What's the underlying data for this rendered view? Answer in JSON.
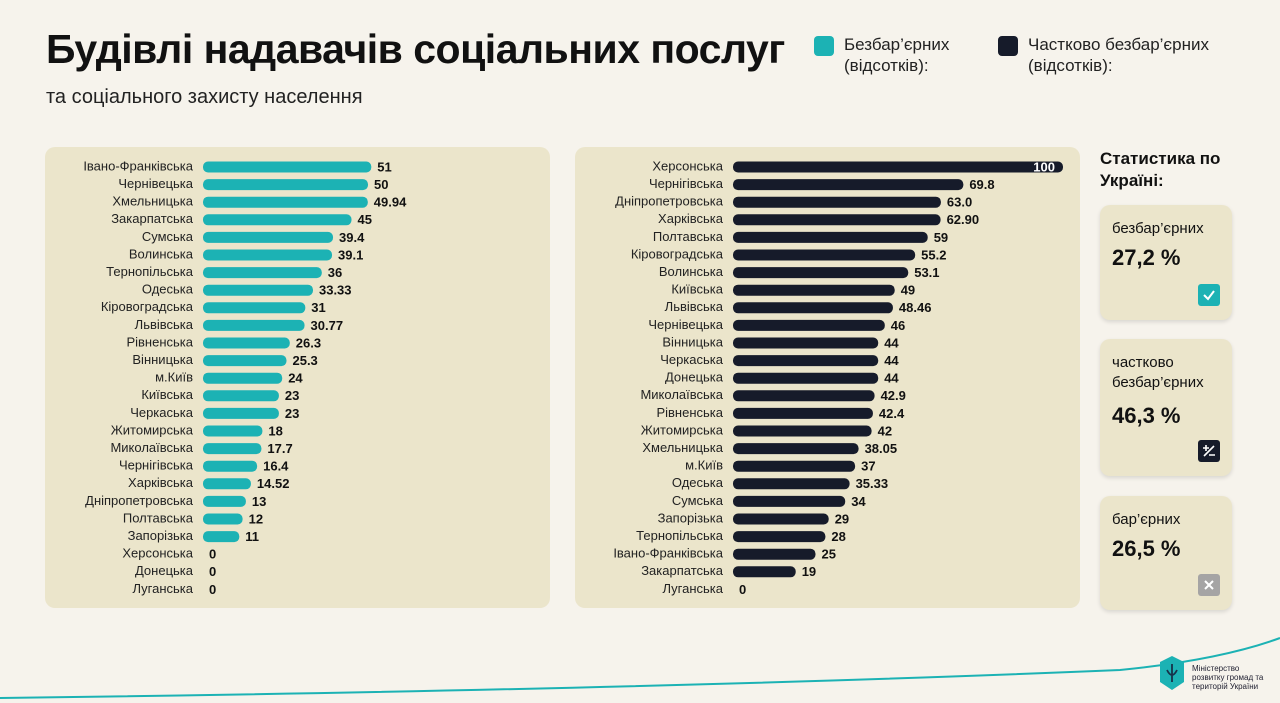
{
  "header": {
    "title": "Будівлі надавачів соціальних послуг",
    "subtitle": "та соціального захисту населення"
  },
  "chart_data": [
    {
      "type": "bar",
      "orientation": "horizontal",
      "categories": [
        "Івано-Франківська",
        "Чернівецька",
        "Хмельницька",
        "Закарпатська",
        "Сумська",
        "Волинська",
        "Тернопільська",
        "Одеська",
        "Кіровоградська",
        "Львівська",
        "Рівненська",
        "Вінницька",
        "м.Київ",
        "Київська",
        "Черкаська",
        "Житомирська",
        "Миколаївська",
        "Чернігівська",
        "Харківська",
        "Дніпропетровська",
        "Полтавська",
        "Запорізька",
        "Херсонська",
        "Донецька",
        "Луганська"
      ],
      "series": [
        {
          "name": "Безбар’єрних (відсотків):",
          "color": "#1cb2b4",
          "values": [
            51,
            50,
            49.94,
            45,
            39.4,
            39.1,
            36,
            33.33,
            31,
            30.77,
            26.3,
            25.3,
            24,
            23,
            23,
            18,
            17.7,
            16.4,
            14.52,
            13,
            12,
            11,
            0,
            0,
            0
          ]
        }
      ]
    },
    {
      "type": "bar",
      "orientation": "horizontal",
      "categories": [
        "Херсонська",
        "Чернігівська",
        "Дніпропетровська",
        "Харківська",
        "Полтавська",
        "Кіровоградська",
        "Волинська",
        "Київська",
        "Львівська",
        "Чернівецька",
        "Вінницька",
        "Черкаська",
        "Донецька",
        "Миколаївська",
        "Рівненська",
        "Житомирська",
        "Хмельницька",
        "м.Київ",
        "Одеська",
        "Сумська",
        "Запорізька",
        "Тернопільська",
        "Івано-Франківська",
        "Закарпатська",
        "Луганська"
      ],
      "series": [
        {
          "name": "Частково безбар’єрних (відсотків):",
          "color": "#161b2a",
          "values": [
            100,
            69.8,
            63,
            62.9,
            59,
            55.2,
            53.1,
            49,
            48.46,
            46,
            44,
            44,
            44,
            42.9,
            42.4,
            42,
            38.05,
            37,
            35.33,
            34,
            29,
            28,
            25,
            19,
            0
          ],
          "value_labels": [
            "100",
            "69.8",
            "63.0",
            "62.90",
            "59",
            "55.2",
            "53.1",
            "49",
            "48.46",
            "46",
            "44",
            "44",
            "44",
            "42.9",
            "42.4",
            "42",
            "38.05",
            "37",
            "35.33",
            "34",
            "29",
            "28",
            "25",
            "19",
            "0"
          ]
        }
      ]
    }
  ],
  "stats": {
    "title": "Статистика по Україні:",
    "items": [
      {
        "label": "безбар’єрних",
        "value": "27,2 %"
      },
      {
        "label": "частково безбар’єрних",
        "value": "46,3 %"
      },
      {
        "label": "бар’єрних",
        "value": "26,5 %"
      }
    ]
  },
  "footer": {
    "org": "Міністерство розвитку громад та територій України"
  }
}
